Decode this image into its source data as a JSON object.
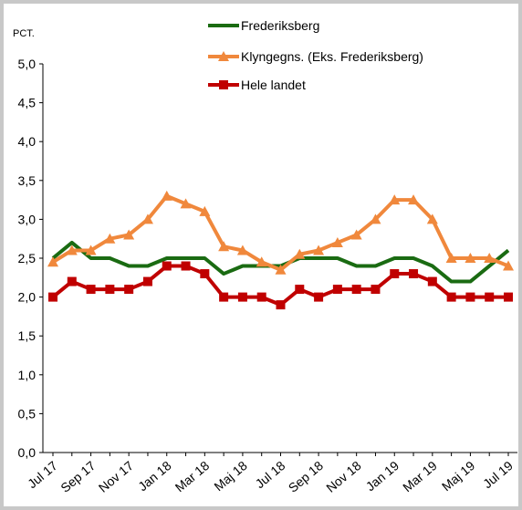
{
  "chart_data": {
    "type": "line",
    "y_label": "PCT.",
    "categories": [
      "Jul 17",
      null,
      "Sep 17",
      null,
      "Nov 17",
      null,
      "Jan 18",
      null,
      "Mar 18",
      null,
      "Maj 18",
      null,
      "Jul 18",
      null,
      "Sep 18",
      null,
      "Nov 18",
      null,
      "Jan 19",
      null,
      "Mar 19",
      null,
      "Maj 19",
      null,
      "Jul 19"
    ],
    "series": [
      {
        "name": "Frederiksberg",
        "color": "#1a6b12",
        "marker": "none",
        "values": [
          2.5,
          2.7,
          2.5,
          2.5,
          2.4,
          2.4,
          2.5,
          2.5,
          2.5,
          2.3,
          2.4,
          2.4,
          2.4,
          2.5,
          2.5,
          2.5,
          2.4,
          2.4,
          2.5,
          2.5,
          2.4,
          2.2,
          2.2,
          2.4,
          2.6
        ]
      },
      {
        "name": "Klyngegns. (Eks. Frederiksberg)",
        "color": "#f0883c",
        "marker": "triangle",
        "values": [
          2.45,
          2.6,
          2.6,
          2.75,
          2.8,
          3.0,
          3.3,
          3.2,
          3.1,
          2.65,
          2.6,
          2.45,
          2.35,
          2.55,
          2.6,
          2.7,
          2.8,
          3.0,
          3.25,
          3.25,
          3.0,
          2.5,
          2.5,
          2.5,
          2.4
        ]
      },
      {
        "name": "Hele landet",
        "color": "#c00000",
        "marker": "square",
        "values": [
          2.0,
          2.2,
          2.1,
          2.1,
          2.1,
          2.2,
          2.4,
          2.4,
          2.3,
          2.0,
          2.0,
          2.0,
          1.9,
          2.1,
          2.0,
          2.1,
          2.1,
          2.1,
          2.3,
          2.3,
          2.2,
          2.0,
          2.0,
          2.0,
          2.0
        ]
      }
    ],
    "ylim": [
      0,
      5
    ],
    "yticks": [
      {
        "value": 0,
        "label": "0,0"
      },
      {
        "value": 0.5,
        "label": "0,5"
      },
      {
        "value": 1,
        "label": "1,0"
      },
      {
        "value": 1.5,
        "label": "1,5"
      },
      {
        "value": 2,
        "label": "2,0"
      },
      {
        "value": 2.5,
        "label": "2,5"
      },
      {
        "value": 3,
        "label": "3,0"
      },
      {
        "value": 3.5,
        "label": "3,5"
      },
      {
        "value": 4,
        "label": "4,0"
      },
      {
        "value": 4.5,
        "label": "4,5"
      },
      {
        "value": 5,
        "label": "5,0"
      }
    ],
    "grid": false,
    "legend": "top"
  }
}
